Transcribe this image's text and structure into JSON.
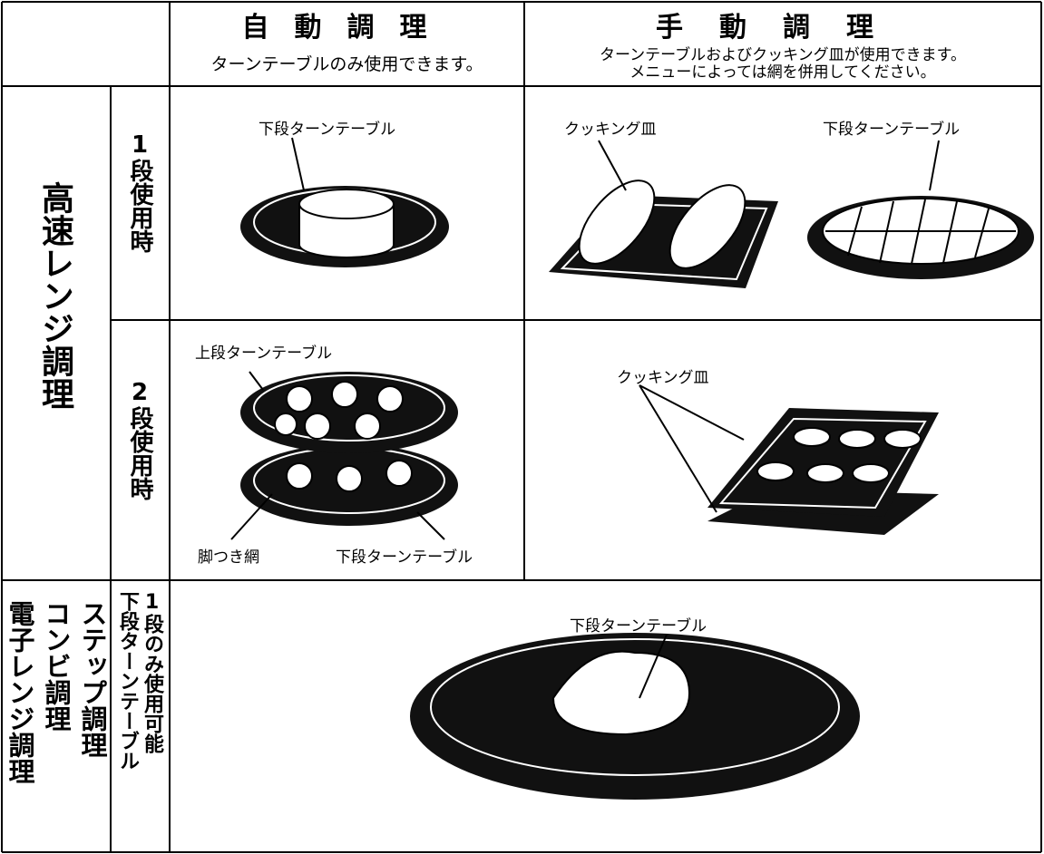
{
  "header": {
    "auto": {
      "title": "自動調理",
      "note": "ターンテーブルのみ使用できます。"
    },
    "manual": {
      "title": "手動調理",
      "notes": [
        "ターンテーブルおよびクッキング皿が使用できます。",
        "メニューによっては網を併用してください。"
      ]
    }
  },
  "rows": [
    {
      "group": "高速レンジ調理",
      "sub": "1段使用時",
      "auto_labels": [
        "下段ターンテーブル"
      ],
      "manual_labels": [
        "クッキング皿",
        "下段ターンテーブル"
      ]
    },
    {
      "sub": "2段使用時",
      "auto_labels": [
        "上段ターンテーブル",
        "脚つき網",
        "下段ターンテーブル"
      ],
      "manual_labels": [
        "クッキング皿"
      ]
    },
    {
      "group": [
        "ステップ調理",
        "コンビ調理",
        "電子レンジ調理"
      ],
      "sub": [
        "1段のみ使用可能",
        "下段ターンテーブル"
      ],
      "labels": [
        "下段ターンテーブル"
      ]
    }
  ]
}
